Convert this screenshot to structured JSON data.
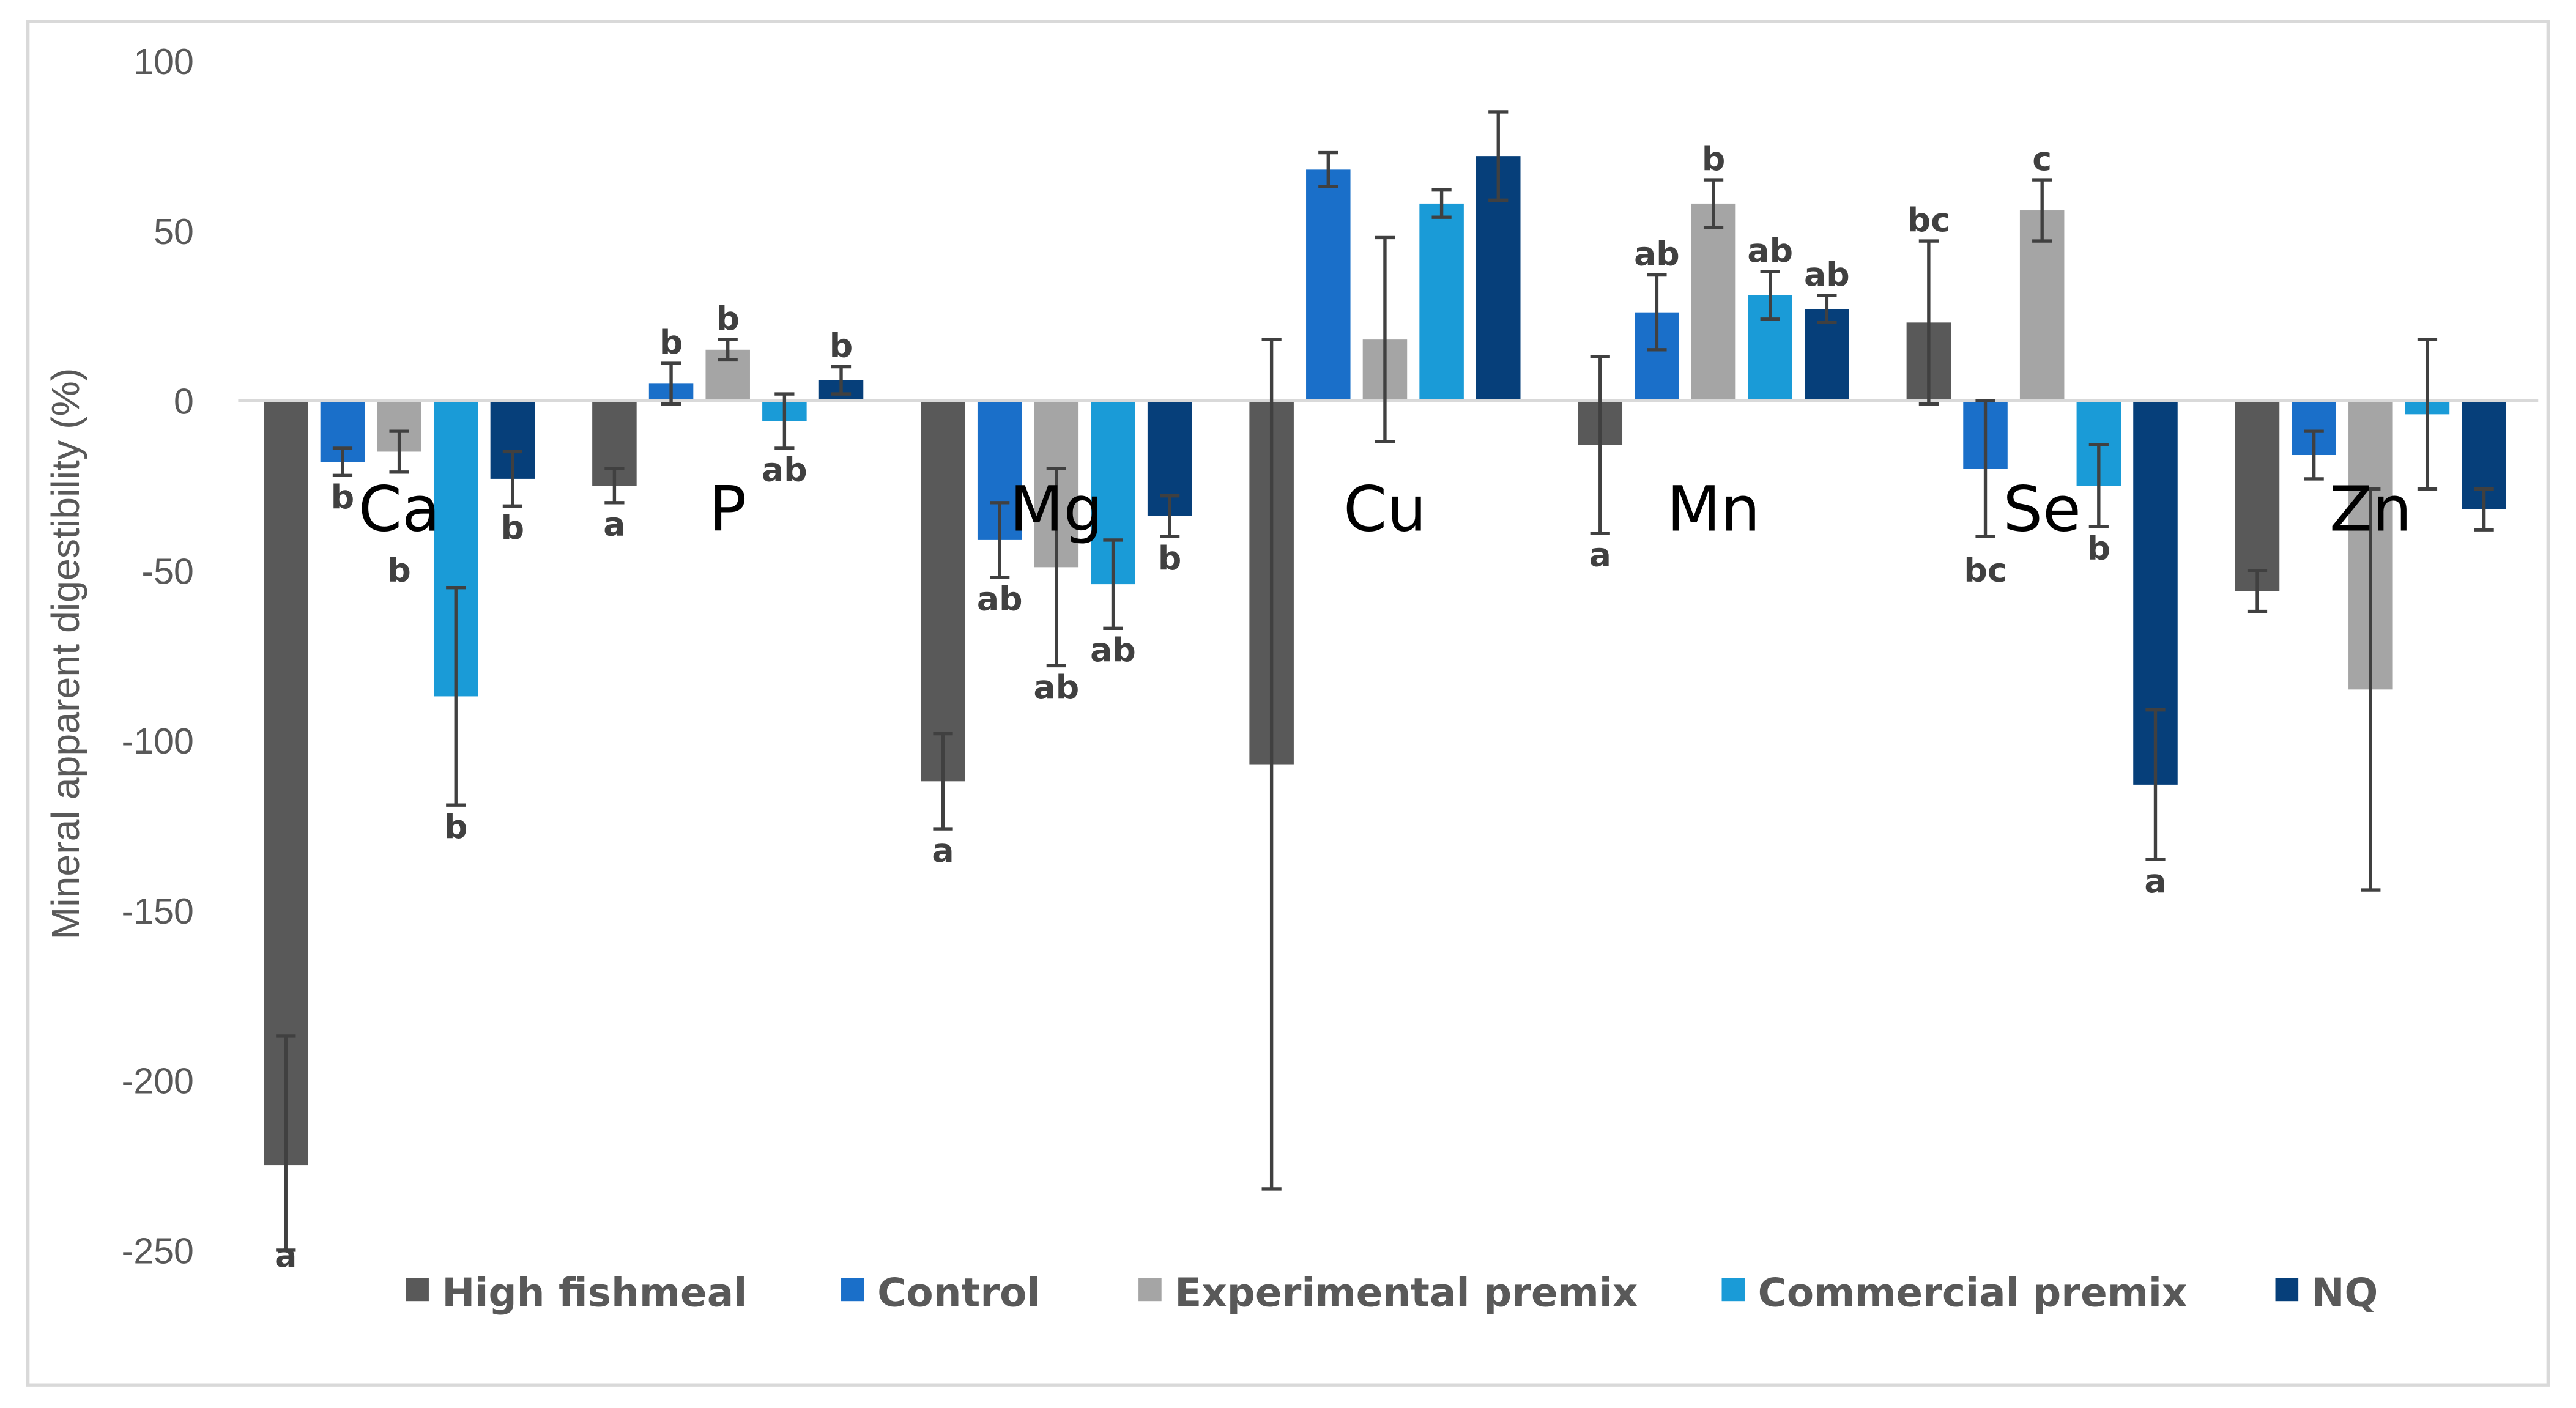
{
  "chart_data": {
    "type": "bar",
    "title": "",
    "xlabel": "",
    "ylabel": "Mineral apparent digestibility (%)",
    "ylim": [
      -250,
      100
    ],
    "yticks": [
      100,
      50,
      0,
      -50,
      -100,
      -150,
      -200,
      -250
    ],
    "grid": false,
    "legend_position": "bottom",
    "categories": [
      "Ca",
      "P",
      "Mg",
      "Cu",
      "Mn",
      "Se",
      "Zn"
    ],
    "series": [
      {
        "name": "High fishmeal",
        "color": "#595959",
        "values": [
          -225,
          -25,
          -112,
          -107,
          -13,
          23,
          -56
        ],
        "errors": [
          38,
          5,
          14,
          125,
          26,
          24,
          6
        ],
        "letters": [
          "a",
          "a",
          "a",
          "",
          "a",
          "bc",
          ""
        ]
      },
      {
        "name": "Control",
        "color": "#1a6fc9",
        "values": [
          -18,
          5,
          -41,
          68,
          26,
          -20,
          -16
        ],
        "errors": [
          4,
          6,
          11,
          5,
          11,
          20,
          7
        ],
        "letters": [
          "b",
          "b",
          "ab",
          "",
          "ab",
          "bc",
          ""
        ]
      },
      {
        "name": "Experimental premix",
        "color": "#a5a5a5",
        "values": [
          -15,
          15,
          -49,
          18,
          58,
          56,
          -85
        ],
        "errors": [
          6,
          3,
          29,
          30,
          7,
          9,
          59
        ],
        "letters": [
          "b",
          "b",
          "ab",
          "",
          "b",
          "c",
          ""
        ]
      },
      {
        "name": "Commercial premix",
        "color": "#1a9bd7",
        "values": [
          -87,
          -6,
          -54,
          58,
          31,
          -25,
          -4
        ],
        "errors": [
          32,
          8,
          13,
          4,
          7,
          12,
          22
        ],
        "letters": [
          "b",
          "ab",
          "ab",
          "",
          "ab",
          "b",
          ""
        ]
      },
      {
        "name": "NQ",
        "color": "#063f7a",
        "values": [
          -23,
          6,
          -34,
          72,
          27,
          -113,
          -32
        ],
        "errors": [
          8,
          4,
          6,
          13,
          4,
          22,
          6
        ],
        "letters": [
          "b",
          "b",
          "b",
          "",
          "ab",
          "a",
          ""
        ]
      }
    ]
  }
}
